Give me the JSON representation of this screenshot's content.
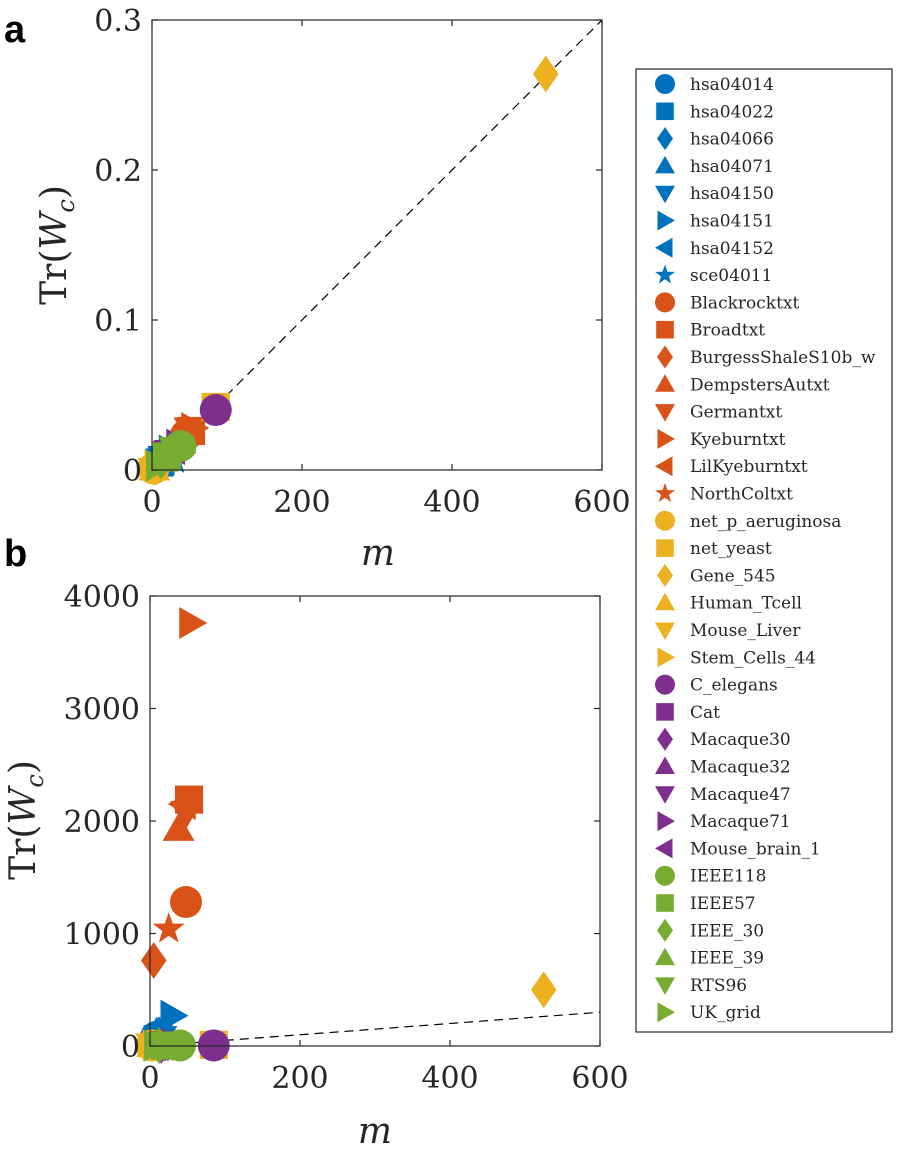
{
  "panels": {
    "a": {
      "letter": "a"
    },
    "b": {
      "letter": "b"
    }
  },
  "chart_data": [
    {
      "panel": "a",
      "type": "scatter",
      "xlabel": "m",
      "ylabel_prefix": "Tr(",
      "ylabel_var": "W",
      "ylabel_sub": "c",
      "ylabel_suffix": ")",
      "xlim": [
        0,
        600
      ],
      "ylim": [
        0,
        0.3
      ],
      "xticks": [
        0,
        200,
        400,
        600
      ],
      "xtick_labels": [
        "0",
        "200",
        "400",
        "600"
      ],
      "yticks": [
        0,
        0.1,
        0.2,
        0.3
      ],
      "ytick_labels": [
        "0",
        "0.1",
        "0.2",
        "0.3"
      ],
      "reference_line": {
        "style": "dashed",
        "from": [
          0,
          0
        ],
        "to": [
          600,
          0.3
        ]
      },
      "points": [
        {
          "series": "hsa04014",
          "x": 8,
          "y": 0.004
        },
        {
          "series": "hsa04022",
          "x": 10,
          "y": 0.005
        },
        {
          "series": "hsa04066",
          "x": 12,
          "y": 0.006
        },
        {
          "series": "hsa04071",
          "x": 9,
          "y": 0.005
        },
        {
          "series": "hsa04150",
          "x": 15,
          "y": 0.008
        },
        {
          "series": "hsa04151",
          "x": 25,
          "y": 0.013
        },
        {
          "series": "hsa04152",
          "x": 14,
          "y": 0.007
        },
        {
          "series": "sce04011",
          "x": 30,
          "y": 0.007
        },
        {
          "series": "Blackrocktxt",
          "x": 45,
          "y": 0.023
        },
        {
          "series": "Broadtxt",
          "x": 52,
          "y": 0.026
        },
        {
          "series": "BurgessShaleS10b_w",
          "x": 5,
          "y": 0.002
        },
        {
          "series": "DempstersAutxt",
          "x": 38,
          "y": 0.019
        },
        {
          "series": "Germantxt",
          "x": 50,
          "y": 0.027
        },
        {
          "series": "Kyeburntxt",
          "x": 55,
          "y": 0.028
        },
        {
          "series": "LilKyeburntxt",
          "x": 40,
          "y": 0.02
        },
        {
          "series": "NorthColtxt",
          "x": 25,
          "y": 0.012
        },
        {
          "series": "net_p_aeruginosa",
          "x": 2,
          "y": 0.001
        },
        {
          "series": "net_yeast",
          "x": 85,
          "y": 0.042
        },
        {
          "series": "Gene_545",
          "x": 525,
          "y": 0.264
        },
        {
          "series": "Human_Tcell",
          "x": 3,
          "y": 0.001
        },
        {
          "series": "Mouse_Liver",
          "x": 2,
          "y": 0.0
        },
        {
          "series": "Stem_Cells_44",
          "x": 6,
          "y": 0.003
        },
        {
          "series": "C_elegans",
          "x": 85,
          "y": 0.04
        },
        {
          "series": "Cat",
          "x": 20,
          "y": 0.01
        },
        {
          "series": "Macaque30",
          "x": 15,
          "y": 0.008
        },
        {
          "series": "Macaque32",
          "x": 16,
          "y": 0.008
        },
        {
          "series": "Macaque47",
          "x": 24,
          "y": 0.012
        },
        {
          "series": "Macaque71",
          "x": 35,
          "y": 0.017
        },
        {
          "series": "Mouse_brain_1",
          "x": 28,
          "y": 0.014
        },
        {
          "series": "IEEE118",
          "x": 38,
          "y": 0.016
        },
        {
          "series": "IEEE57",
          "x": 20,
          "y": 0.009
        },
        {
          "series": "IEEE_30",
          "x": 12,
          "y": 0.006
        },
        {
          "series": "IEEE_39",
          "x": 14,
          "y": 0.007
        },
        {
          "series": "RTS96",
          "x": 30,
          "y": 0.014
        },
        {
          "series": "UK_grid",
          "x": 8,
          "y": 0.003
        }
      ]
    },
    {
      "panel": "b",
      "type": "scatter",
      "xlabel": "m",
      "ylabel_prefix": "Tr(",
      "ylabel_var": "W",
      "ylabel_sub": "c",
      "ylabel_suffix": ")",
      "xlim": [
        0,
        600
      ],
      "ylim": [
        0,
        4000
      ],
      "xticks": [
        0,
        200,
        400,
        600
      ],
      "xtick_labels": [
        "0",
        "200",
        "400",
        "600"
      ],
      "yticks": [
        0,
        1000,
        2000,
        3000,
        4000
      ],
      "ytick_labels": [
        "0",
        "1000",
        "2000",
        "3000",
        "4000"
      ],
      "reference_line": {
        "style": "dashed",
        "from": [
          0,
          0
        ],
        "to": [
          600,
          300
        ]
      },
      "points": [
        {
          "series": "hsa04014",
          "x": 8,
          "y": 80
        },
        {
          "series": "hsa04022",
          "x": 10,
          "y": 60
        },
        {
          "series": "hsa04066",
          "x": 12,
          "y": 100
        },
        {
          "series": "hsa04071",
          "x": 9,
          "y": 120
        },
        {
          "series": "hsa04150",
          "x": 15,
          "y": 70
        },
        {
          "series": "hsa04151",
          "x": 30,
          "y": 270
        },
        {
          "series": "hsa04152",
          "x": 14,
          "y": 50
        },
        {
          "series": "sce04011",
          "x": 20,
          "y": 90
        },
        {
          "series": "Blackrocktxt",
          "x": 48,
          "y": 1280
        },
        {
          "series": "Broadtxt",
          "x": 52,
          "y": 2190
        },
        {
          "series": "BurgessShaleS10b_w",
          "x": 5,
          "y": 760
        },
        {
          "series": "DempstersAutxt",
          "x": 38,
          "y": 1930
        },
        {
          "series": "Germantxt",
          "x": 48,
          "y": 2070
        },
        {
          "series": "Kyeburntxt",
          "x": 55,
          "y": 3760
        },
        {
          "series": "LilKyeburntxt",
          "x": 45,
          "y": 2150
        },
        {
          "series": "NorthColtxt",
          "x": 25,
          "y": 1040
        },
        {
          "series": "net_p_aeruginosa",
          "x": 2,
          "y": 5
        },
        {
          "series": "net_yeast",
          "x": 85,
          "y": 10
        },
        {
          "series": "Gene_545",
          "x": 525,
          "y": 500
        },
        {
          "series": "Human_Tcell",
          "x": 3,
          "y": 8
        },
        {
          "series": "Mouse_Liver",
          "x": 2,
          "y": 3
        },
        {
          "series": "Stem_Cells_44",
          "x": 6,
          "y": 5
        },
        {
          "series": "C_elegans",
          "x": 85,
          "y": 5
        },
        {
          "series": "Cat",
          "x": 20,
          "y": 8
        },
        {
          "series": "Macaque30",
          "x": 15,
          "y": 5
        },
        {
          "series": "Macaque32",
          "x": 16,
          "y": 6
        },
        {
          "series": "Macaque47",
          "x": 24,
          "y": 5
        },
        {
          "series": "Macaque71",
          "x": 35,
          "y": 6
        },
        {
          "series": "Mouse_brain_1",
          "x": 28,
          "y": 4
        },
        {
          "series": "IEEE118",
          "x": 40,
          "y": 5
        },
        {
          "series": "IEEE57",
          "x": 20,
          "y": 4
        },
        {
          "series": "IEEE_30",
          "x": 12,
          "y": 3
        },
        {
          "series": "IEEE_39",
          "x": 14,
          "y": 3
        },
        {
          "series": "RTS96",
          "x": 30,
          "y": 4
        },
        {
          "series": "UK_grid",
          "x": 8,
          "y": 3
        }
      ]
    }
  ],
  "legend": {
    "placement": "right",
    "entries": [
      {
        "label": "hsa04014",
        "marker": "circle",
        "color": "#0072BD"
      },
      {
        "label": "hsa04022",
        "marker": "square",
        "color": "#0072BD"
      },
      {
        "label": "hsa04066",
        "marker": "diamond",
        "color": "#0072BD"
      },
      {
        "label": "hsa04071",
        "marker": "triangle-up",
        "color": "#0072BD"
      },
      {
        "label": "hsa04150",
        "marker": "triangle-down",
        "color": "#0072BD"
      },
      {
        "label": "hsa04151",
        "marker": "triangle-right",
        "color": "#0072BD"
      },
      {
        "label": "hsa04152",
        "marker": "triangle-left",
        "color": "#0072BD"
      },
      {
        "label": "sce04011",
        "marker": "star",
        "color": "#0072BD"
      },
      {
        "label": "Blackrocktxt",
        "marker": "circle",
        "color": "#D95319"
      },
      {
        "label": "Broadtxt",
        "marker": "square",
        "color": "#D95319"
      },
      {
        "label": "BurgessShaleS10b_w",
        "marker": "diamond",
        "color": "#D95319"
      },
      {
        "label": "DempstersAutxt",
        "marker": "triangle-up",
        "color": "#D95319"
      },
      {
        "label": "Germantxt",
        "marker": "triangle-down",
        "color": "#D95319"
      },
      {
        "label": "Kyeburntxt",
        "marker": "triangle-right",
        "color": "#D95319"
      },
      {
        "label": "LilKyeburntxt",
        "marker": "triangle-left",
        "color": "#D95319"
      },
      {
        "label": "NorthColtxt",
        "marker": "star",
        "color": "#D95319"
      },
      {
        "label": "net_p_aeruginosa",
        "marker": "circle",
        "color": "#EDB120"
      },
      {
        "label": "net_yeast",
        "marker": "square",
        "color": "#EDB120"
      },
      {
        "label": "Gene_545",
        "marker": "diamond",
        "color": "#EDB120"
      },
      {
        "label": "Human_Tcell",
        "marker": "triangle-up",
        "color": "#EDB120"
      },
      {
        "label": "Mouse_Liver",
        "marker": "triangle-down",
        "color": "#EDB120"
      },
      {
        "label": "Stem_Cells_44",
        "marker": "triangle-right",
        "color": "#EDB120"
      },
      {
        "label": "C_elegans",
        "marker": "circle",
        "color": "#7E2F8E"
      },
      {
        "label": "Cat",
        "marker": "square",
        "color": "#7E2F8E"
      },
      {
        "label": "Macaque30",
        "marker": "diamond",
        "color": "#7E2F8E"
      },
      {
        "label": "Macaque32",
        "marker": "triangle-up",
        "color": "#7E2F8E"
      },
      {
        "label": "Macaque47",
        "marker": "triangle-down",
        "color": "#7E2F8E"
      },
      {
        "label": "Macaque71",
        "marker": "triangle-right",
        "color": "#7E2F8E"
      },
      {
        "label": "Mouse_brain_1",
        "marker": "triangle-left",
        "color": "#7E2F8E"
      },
      {
        "label": "IEEE118",
        "marker": "circle",
        "color": "#77AC30"
      },
      {
        "label": "IEEE57",
        "marker": "square",
        "color": "#77AC30"
      },
      {
        "label": "IEEE_30",
        "marker": "diamond",
        "color": "#77AC30"
      },
      {
        "label": "IEEE_39",
        "marker": "triangle-up",
        "color": "#77AC30"
      },
      {
        "label": "RTS96",
        "marker": "triangle-down",
        "color": "#77AC30"
      },
      {
        "label": "UK_grid",
        "marker": "triangle-right",
        "color": "#77AC30"
      }
    ]
  }
}
